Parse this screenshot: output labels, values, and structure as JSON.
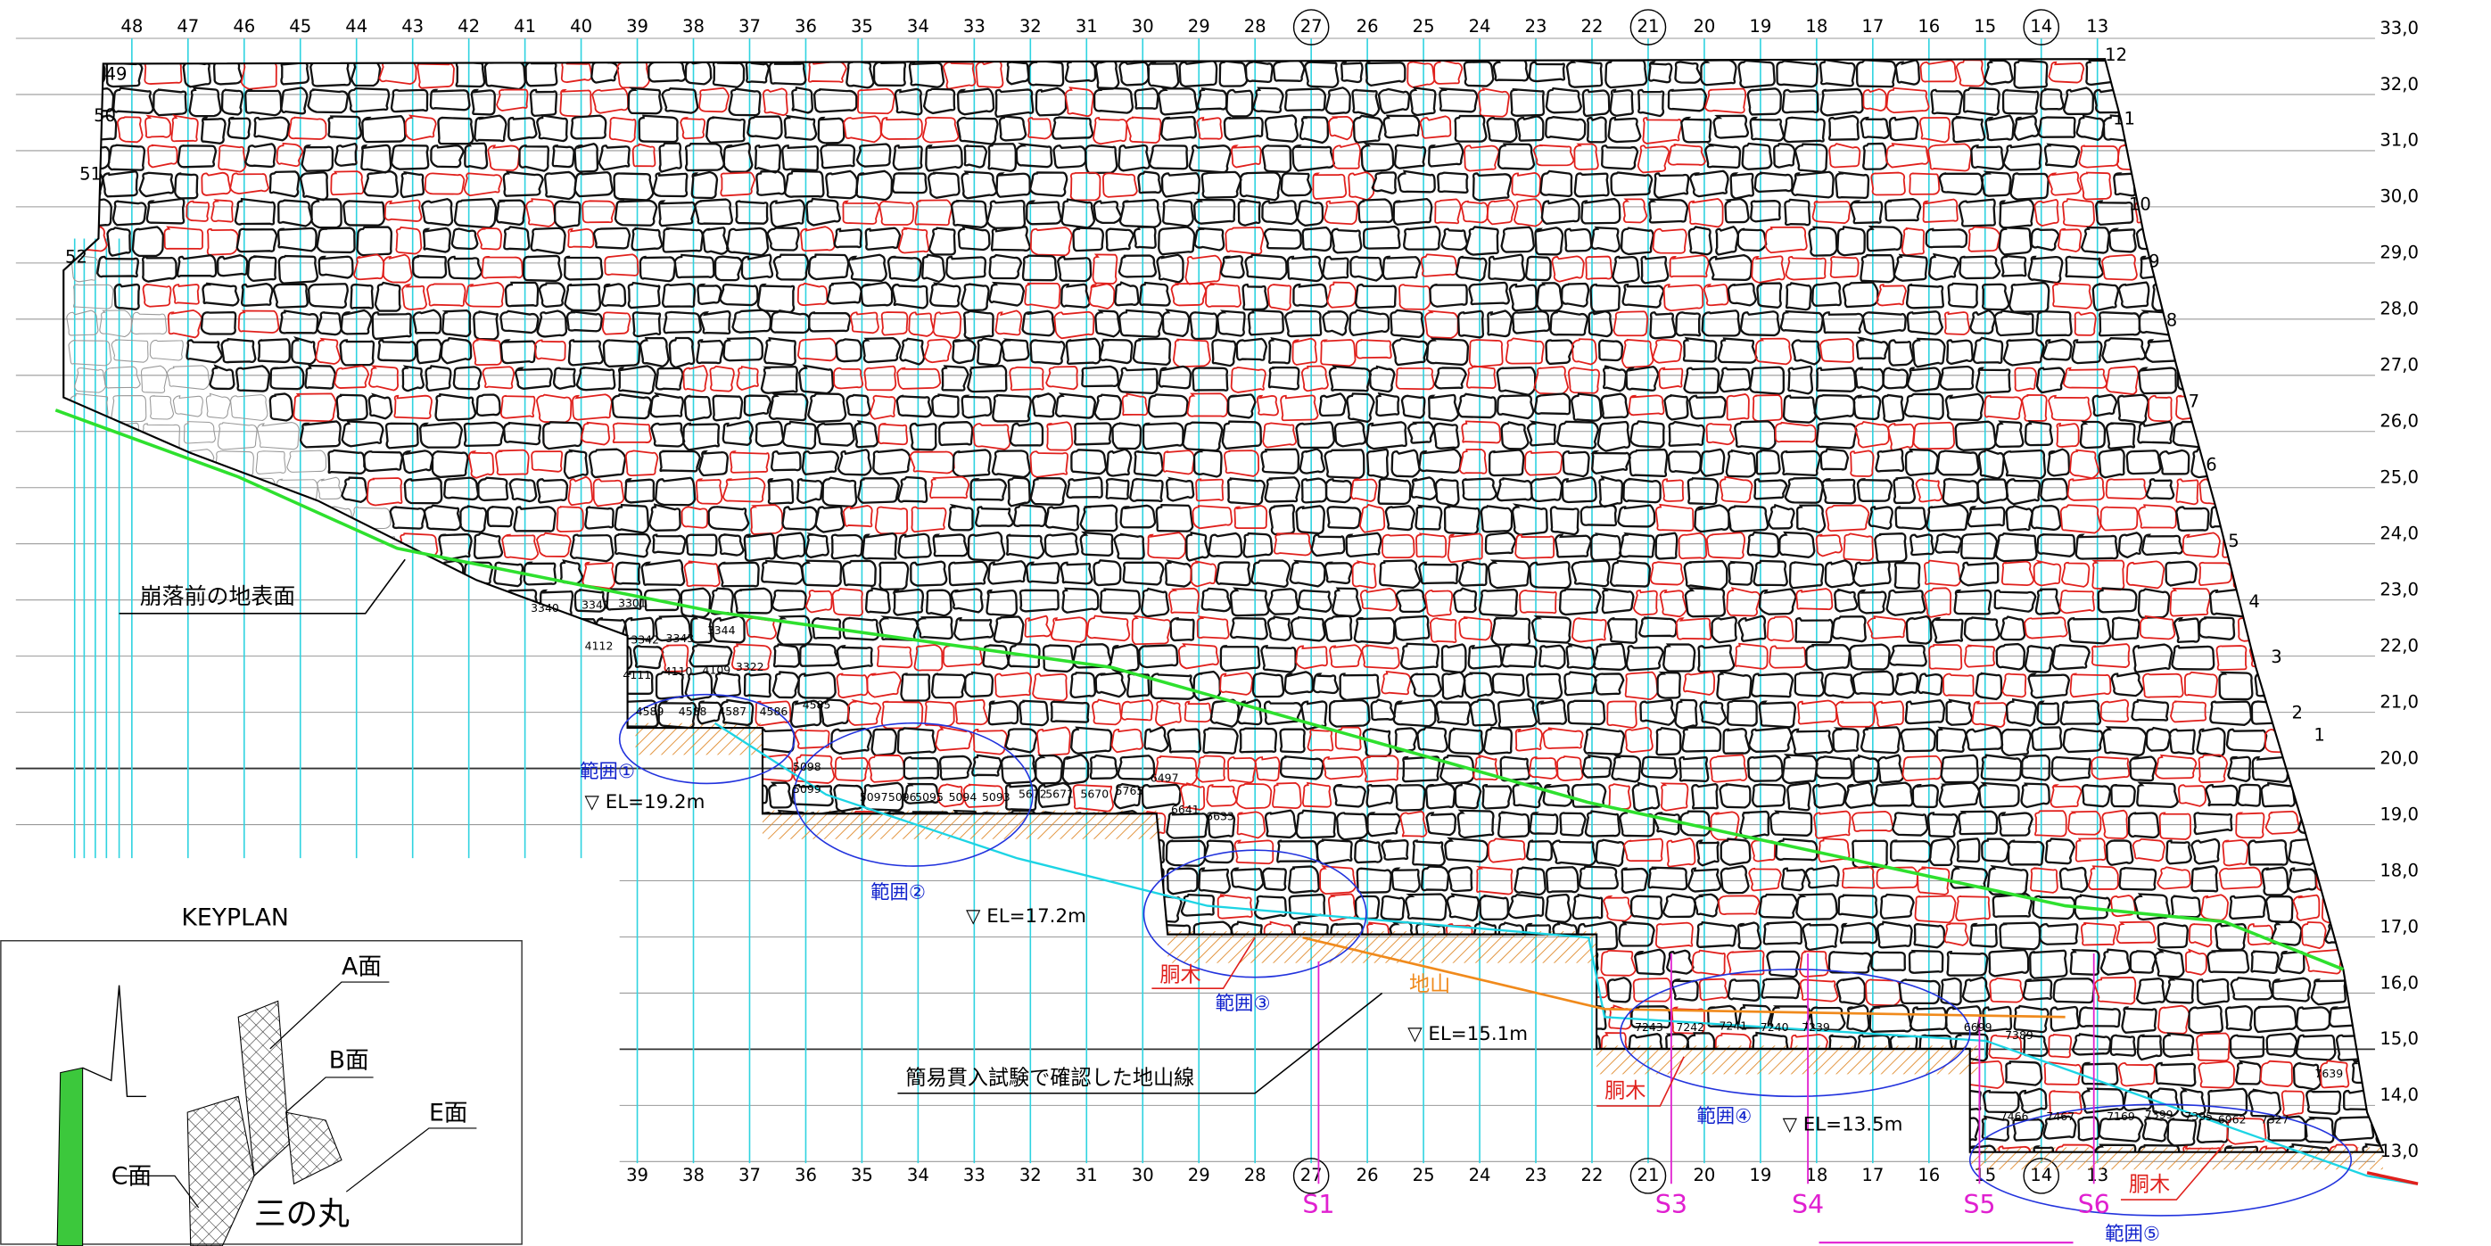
{
  "top_columns": [
    "48",
    "47",
    "46",
    "45",
    "44",
    "43",
    "42",
    "41",
    "40",
    "39",
    "38",
    "37",
    "36",
    "35",
    "34",
    "33",
    "32",
    "31",
    "30",
    "29",
    "28",
    "27",
    "26",
    "25",
    "24",
    "23",
    "22",
    "21",
    "20",
    "19",
    "18",
    "17",
    "16",
    "15",
    "14",
    "13"
  ],
  "bottom_columns": [
    "39",
    "38",
    "37",
    "36",
    "35",
    "34",
    "33",
    "32",
    "31",
    "30",
    "29",
    "28",
    "27",
    "26",
    "25",
    "24",
    "23",
    "22",
    "21",
    "20",
    "19",
    "18",
    "17",
    "16",
    "15",
    "14",
    "13"
  ],
  "elevations": [
    "33,0",
    "32,0",
    "31,0",
    "30,0",
    "29,0",
    "28,0",
    "27,0",
    "26,0",
    "25,0",
    "24,0",
    "23,0",
    "22,0",
    "21,0",
    "20,0",
    "19,0",
    "18,0",
    "17,0",
    "16,0",
    "15,0",
    "14,0",
    "13,0"
  ],
  "left_edge_labels": [
    "49",
    "50",
    "51",
    "52"
  ],
  "right_edge_labels": [
    "12",
    "11",
    "10",
    "9",
    "8",
    "7",
    "6",
    "5",
    "4",
    "3",
    "2",
    "1"
  ],
  "annotations": {
    "ground_before_collapse": "崩落前の地表面",
    "range_1": "範囲①",
    "el_19_2": "▽ EL=19.2m",
    "range_2": "範囲②",
    "el_17_2": "▽ EL=17.2m",
    "dougi_1": "胴木",
    "range_3": "範囲③",
    "jiyama": "地山",
    "el_15_1": "▽ EL=15.1m",
    "penetration_line": "簡易貫入試験で確認した地山線",
    "dougi_2": "胴木",
    "range_4": "範囲④",
    "el_13_5": "▽ EL=13.5m",
    "dougi_3": "胴木",
    "range_5": "範囲⑤"
  },
  "sections": [
    "S1",
    "S3",
    "S4",
    "S5",
    "S6"
  ],
  "stone_numbers": [
    "3340",
    "3341",
    "3301",
    "3342",
    "3343",
    "3344",
    "4112",
    "4111",
    "4110",
    "4109",
    "3322",
    "4585",
    "4586",
    "4587",
    "4588",
    "4589",
    "5098",
    "5099",
    "5097",
    "5096",
    "5095",
    "5094",
    "5093",
    "5672",
    "5671",
    "5670",
    "5765",
    "6497",
    "6641",
    "6633",
    "7243",
    "7242",
    "7241",
    "7240",
    "7239",
    "6699",
    "7389",
    "7466",
    "7467",
    "7169",
    "7399",
    "7395",
    "6962",
    "7327",
    "7639"
  ],
  "keyplan": {
    "title": "KEYPLAN",
    "labels": [
      "A面",
      "B面",
      "E面",
      "C面",
      "三の丸"
    ]
  }
}
